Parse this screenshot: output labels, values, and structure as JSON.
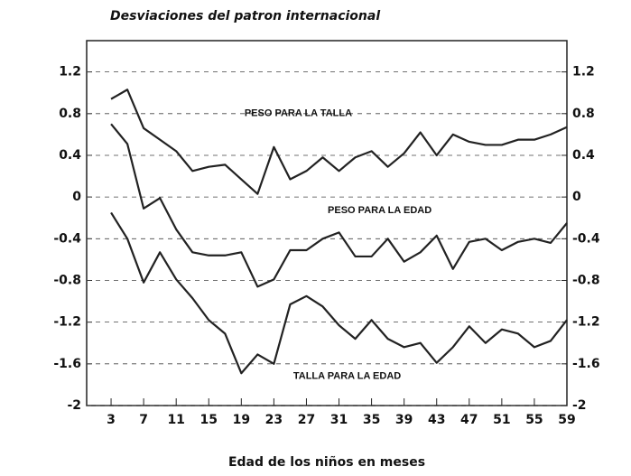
{
  "chart_data": {
    "type": "line",
    "title": "Desviaciones del patron internacional",
    "xlabel": "Edad de los niños en meses",
    "x": [
      3,
      5,
      7,
      9,
      11,
      13,
      15,
      17,
      19,
      21,
      23,
      25,
      27,
      29,
      31,
      33,
      35,
      37,
      39,
      41,
      43,
      45,
      47,
      49,
      51,
      53,
      55,
      57,
      59
    ],
    "series": [
      {
        "name": "PESO PARA LA TALLA",
        "color": "#222222",
        "values": [
          0.94,
          1.03,
          0.66,
          0.55,
          0.44,
          0.25,
          0.29,
          0.31,
          0.17,
          0.03,
          0.48,
          0.17,
          0.25,
          0.38,
          0.25,
          0.38,
          0.44,
          0.29,
          0.42,
          0.62,
          0.4,
          0.6,
          0.53,
          0.5,
          0.5,
          0.55,
          0.55,
          0.6,
          0.67
        ]
      },
      {
        "name": "PESO PARA LA EDAD",
        "color": "#222222",
        "values": [
          0.7,
          0.51,
          -0.11,
          -0.01,
          -0.31,
          -0.53,
          -0.56,
          -0.56,
          -0.53,
          -0.86,
          -0.79,
          -0.51,
          -0.51,
          -0.4,
          -0.34,
          -0.57,
          -0.57,
          -0.4,
          -0.62,
          -0.53,
          -0.37,
          -0.69,
          -0.43,
          -0.4,
          -0.51,
          -0.43,
          -0.4,
          -0.44,
          -0.25
        ]
      },
      {
        "name": "TALLA PARA LA EDAD",
        "color": "#222222",
        "values": [
          -0.15,
          -0.4,
          -0.82,
          -0.53,
          -0.79,
          -0.97,
          -1.18,
          -1.31,
          -1.69,
          -1.51,
          -1.6,
          -1.03,
          -0.95,
          -1.05,
          -1.23,
          -1.36,
          -1.18,
          -1.36,
          -1.44,
          -1.4,
          -1.59,
          -1.44,
          -1.24,
          -1.4,
          -1.27,
          -1.31,
          -1.44,
          -1.38,
          -1.18
        ]
      }
    ],
    "xlim": [
      0,
      59
    ],
    "xticks": [
      3,
      7,
      11,
      15,
      19,
      23,
      27,
      31,
      35,
      39,
      43,
      47,
      51,
      55,
      59
    ],
    "ylim": [
      -2,
      1.5
    ],
    "yticks": [
      -2,
      -1.6,
      -1.2,
      -0.8,
      -0.4,
      0,
      0.4,
      0.8,
      1.2
    ],
    "y2lim": [
      -2,
      1.5
    ],
    "y2ticks": [
      -2,
      -1.6,
      -1.2,
      -0.8,
      -0.4,
      0,
      0.4,
      0.8,
      1.2
    ],
    "grid": true
  }
}
